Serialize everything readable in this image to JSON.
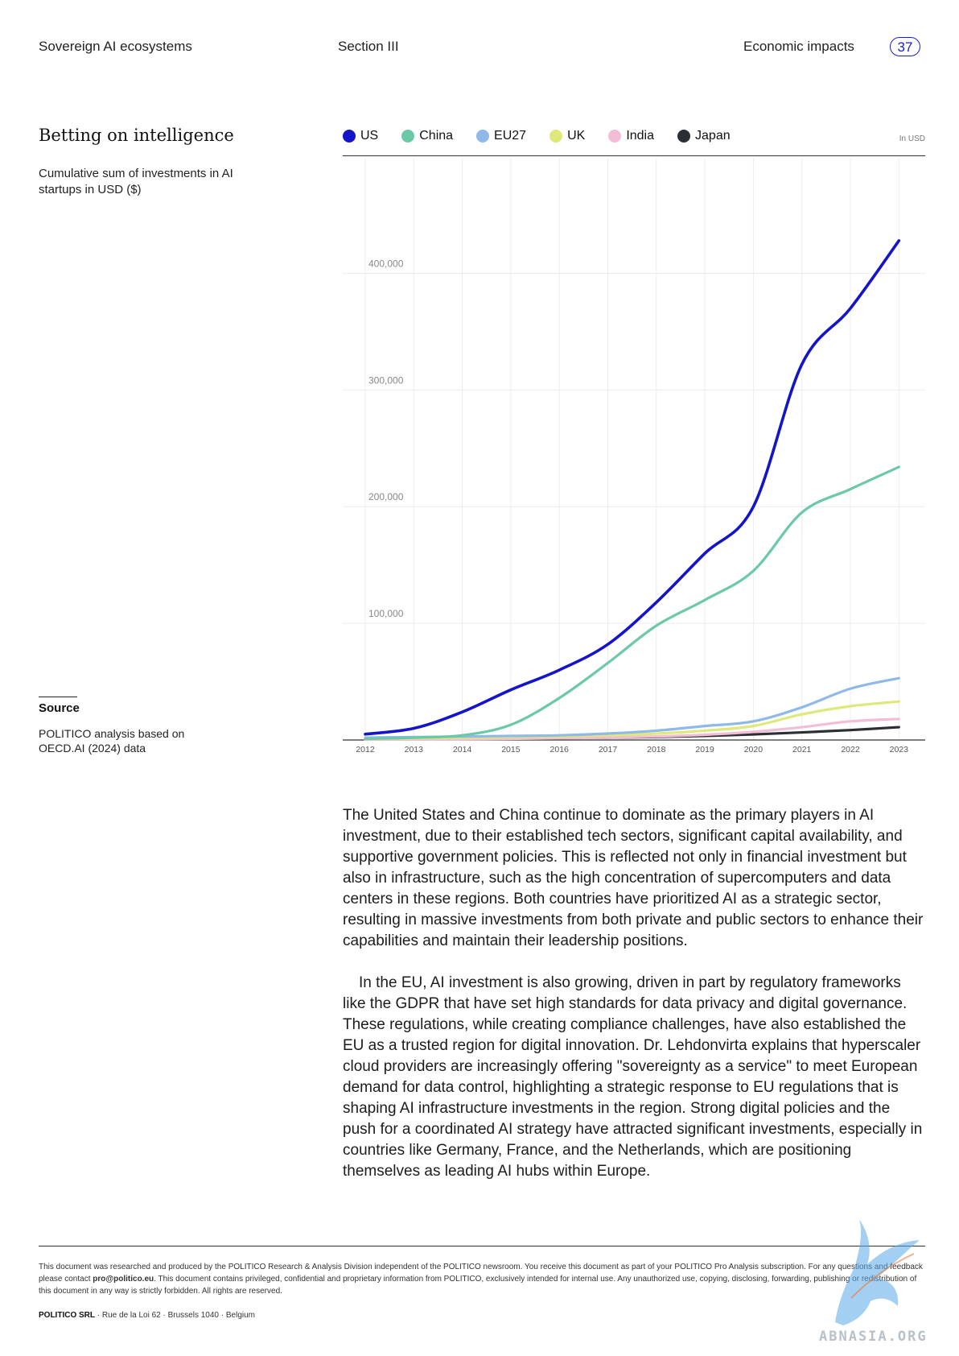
{
  "header": {
    "left": "Sovereign AI ecosystems",
    "center": "Section III",
    "right": "Economic impacts",
    "page": "37"
  },
  "chart_title": "Betting on intelligence",
  "chart_subtitle": "Cumulative sum of investments in AI startups in USD ($)",
  "source": {
    "label": "Source",
    "text": "POLITICO analysis based on OECD.AI (2024) data"
  },
  "colors": {
    "us": "#1414c8",
    "china": "#6cc9a6",
    "eu27": "#8fb9e6",
    "uk": "#dfe87a",
    "india": "#f2bdd6",
    "japan": "#2b2f33",
    "accent": "#1b1bd0"
  },
  "chart_data": {
    "type": "line",
    "unit_label": "In USD",
    "x": [
      "2012",
      "2013",
      "2014",
      "2015",
      "2016",
      "2017",
      "2018",
      "2019",
      "2020",
      "2021",
      "2022",
      "2023"
    ],
    "ylim": [
      0,
      430000
    ],
    "yticks": [
      100000,
      200000,
      300000,
      400000
    ],
    "ytick_labels": [
      "100,000",
      "200,000",
      "300,000",
      "400,000"
    ],
    "grid": true,
    "legend_position": "top",
    "series": [
      {
        "name": "US",
        "color": "#1414c8",
        "values": [
          5000,
          10000,
          24000,
          43000,
          60000,
          82000,
          118000,
          160000,
          200000,
          322000,
          370000,
          428000
        ]
      },
      {
        "name": "China",
        "color": "#6cc9a6",
        "values": [
          1000,
          2000,
          4000,
          13000,
          36000,
          66000,
          98000,
          120000,
          145000,
          195000,
          215000,
          234000
        ]
      },
      {
        "name": "EU27",
        "color": "#8fb9e6",
        "values": [
          2000,
          2500,
          3000,
          3500,
          4000,
          5500,
          8000,
          12000,
          16000,
          28000,
          44000,
          53000
        ]
      },
      {
        "name": "UK",
        "color": "#dfe87a",
        "values": [
          1000,
          1500,
          2000,
          2500,
          3000,
          4000,
          5500,
          8000,
          12000,
          22000,
          29000,
          33000
        ]
      },
      {
        "name": "India",
        "color": "#f2bdd6",
        "values": [
          300,
          500,
          800,
          1000,
          1500,
          2000,
          3000,
          4500,
          7000,
          11000,
          16000,
          18000
        ]
      },
      {
        "name": "Japan",
        "color": "#2b2f33",
        "values": [
          500,
          800,
          1000,
          1300,
          1600,
          2000,
          2600,
          3500,
          4800,
          6500,
          8500,
          11000
        ]
      }
    ]
  },
  "body": {
    "p1": "The United States and China continue to dominate as the primary players in AI investment, due to their established tech sectors, significant capital availability, and supportive government policies. This is reflected not only in financial investment but also in infrastructure, such as the high concentration of supercomputers and data centers in these regions. Both countries have prioritized AI as a strategic sector, resulting in massive investments from both private and public sectors to enhance their capabilities and maintain their leadership positions.",
    "p2": "In the EU, AI investment is also growing, driven in part by regulatory frameworks like the GDPR that have set high standards for data privacy and digital governance. These regulations, while creating compliance challenges, have also established the EU as a trusted region for digital innovation. Dr. Lehdonvirta explains that hyperscaler cloud providers are increasingly offering \"sovereignty as a service\" to meet European demand for data control, highlighting a strategic response to EU regulations that is shaping AI infrastructure investments in the region. Strong digital policies and the push for a coordinated AI strategy have attracted significant investments, especially in countries like Germany, France, and the Netherlands, which are positioning themselves as leading AI hubs within Europe."
  },
  "footer": {
    "note_part1": "This document was researched and produced by the POLITICO Research & Analysis Division independent of the POLITICO newsroom. You receive this document as part of your POLITICO Pro Analysis subscription. For any questions and feedback please contact ",
    "email": "pro@politico.eu",
    "note_part2": ". This document contains privileged, confidential and proprietary information from POLITICO, exclusively intended for internal use. Any unauthorized use, copying, disclosing, forwarding, publishing or redistribution of this document in any way is strictly forbidden. All rights are reserved.",
    "company": "POLITICO SRL",
    "address": " · Rue de la Loi 62 · Brussels 1040 · Belgium"
  },
  "watermark": {
    "text": "ABNASIA.ORG"
  }
}
